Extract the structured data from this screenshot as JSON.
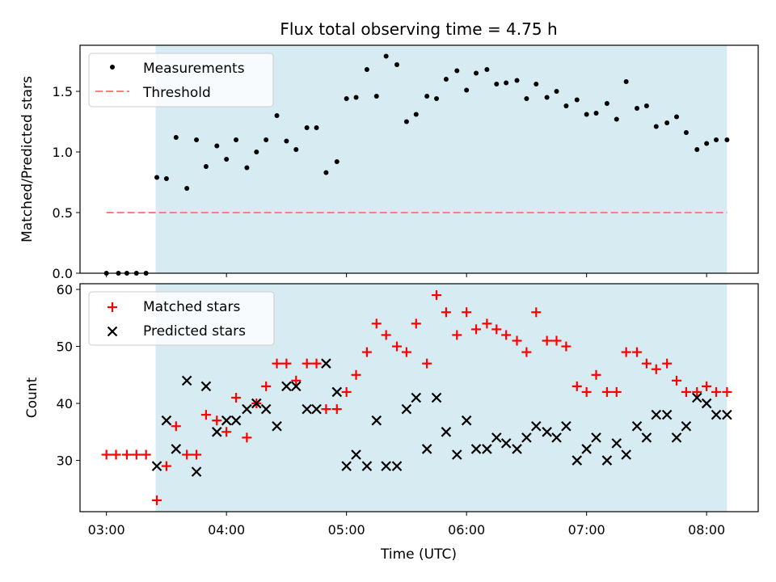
{
  "title": "Flux total observing time = 4.75 h",
  "colors": {
    "shade": "#add8e6",
    "threshold": "#ff7f7f",
    "matched": "#ff0000",
    "predicted": "#000000",
    "measure": "#000000"
  },
  "chart_data": [
    {
      "type": "scatter",
      "ylabel": "Matched/Predicted stars",
      "ylim": [
        0,
        1.88
      ],
      "yticks": [
        "0.0",
        "0.5",
        "1.0",
        "1.5"
      ],
      "xlim": [
        2.78,
        8.43
      ],
      "legend": {
        "placement": "top-left",
        "measurements": "Measurements",
        "threshold": "Threshold"
      },
      "observing_window": [
        3.41,
        8.17
      ],
      "threshold": {
        "value": 0.5,
        "x": [
          3.0,
          8.17
        ]
      },
      "series": [
        {
          "name": "Measurements",
          "x": [
            3.0,
            3.1,
            3.17,
            3.25,
            3.33,
            3.42,
            3.5,
            3.58,
            3.67,
            3.75,
            3.83,
            3.92,
            4.0,
            4.08,
            4.17,
            4.25,
            4.33,
            4.42,
            4.5,
            4.58,
            4.67,
            4.75,
            4.83,
            4.92,
            5.0,
            5.08,
            5.17,
            5.25,
            5.33,
            5.42,
            5.5,
            5.58,
            5.67,
            5.75,
            5.83,
            5.92,
            6.0,
            6.08,
            6.17,
            6.25,
            6.33,
            6.42,
            6.5,
            6.58,
            6.67,
            6.75,
            6.83,
            6.92,
            7.0,
            7.08,
            7.17,
            7.25,
            7.33,
            7.42,
            7.5,
            7.58,
            7.67,
            7.75,
            7.83,
            7.92,
            8.0,
            8.08,
            8.17
          ],
          "y": [
            0.0,
            0.0,
            0.0,
            0.0,
            0.0,
            0.79,
            0.78,
            1.12,
            0.7,
            1.1,
            0.88,
            1.05,
            0.94,
            1.1,
            0.87,
            1.0,
            1.1,
            1.3,
            1.09,
            1.02,
            1.2,
            1.2,
            0.83,
            0.92,
            1.44,
            1.45,
            1.68,
            1.46,
            1.79,
            1.72,
            1.25,
            1.31,
            1.46,
            1.44,
            1.6,
            1.67,
            1.51,
            1.65,
            1.68,
            1.56,
            1.57,
            1.59,
            1.44,
            1.56,
            1.45,
            1.5,
            1.38,
            1.43,
            1.31,
            1.32,
            1.4,
            1.27,
            1.58,
            1.36,
            1.38,
            1.21,
            1.24,
            1.29,
            1.16,
            1.02,
            1.07,
            1.1,
            1.1
          ]
        }
      ]
    },
    {
      "type": "scatter",
      "xlabel": "Time (UTC)",
      "ylabel": "Count",
      "ylim": [
        21,
        61
      ],
      "yticks": [
        "30",
        "40",
        "50",
        "60"
      ],
      "xlim": [
        2.78,
        8.43
      ],
      "xticks": [
        {
          "value": 3,
          "label": "03:00"
        },
        {
          "value": 4,
          "label": "04:00"
        },
        {
          "value": 5,
          "label": "05:00"
        },
        {
          "value": 6,
          "label": "06:00"
        },
        {
          "value": 7,
          "label": "07:00"
        },
        {
          "value": 8,
          "label": "08:00"
        }
      ],
      "legend": {
        "placement": "top-left",
        "matched": "Matched stars",
        "predicted": "Predicted stars"
      },
      "observing_window": [
        3.41,
        8.17
      ],
      "series": [
        {
          "name": "Matched stars",
          "x": [
            3.0,
            3.08,
            3.17,
            3.25,
            3.33,
            3.42,
            3.5,
            3.58,
            3.67,
            3.75,
            3.83,
            3.92,
            4.0,
            4.08,
            4.17,
            4.25,
            4.33,
            4.42,
            4.5,
            4.58,
            4.67,
            4.75,
            4.83,
            4.92,
            5.0,
            5.08,
            5.17,
            5.25,
            5.33,
            5.42,
            5.5,
            5.58,
            5.67,
            5.75,
            5.83,
            5.92,
            6.0,
            6.08,
            6.17,
            6.25,
            6.33,
            6.42,
            6.5,
            6.58,
            6.67,
            6.75,
            6.83,
            6.92,
            7.0,
            7.08,
            7.17,
            7.25,
            7.33,
            7.42,
            7.5,
            7.58,
            7.67,
            7.75,
            7.83,
            7.92,
            8.0,
            8.08,
            8.17
          ],
          "y": [
            31,
            31,
            31,
            31,
            31,
            23,
            29,
            36,
            31,
            31,
            38,
            37,
            35,
            41,
            34,
            40,
            43,
            47,
            47,
            44,
            47,
            47,
            39,
            39,
            42,
            45,
            49,
            54,
            52,
            50,
            49,
            54,
            47,
            59,
            56,
            52,
            56,
            53,
            54,
            53,
            52,
            51,
            49,
            56,
            51,
            51,
            50,
            43,
            42,
            45,
            42,
            42,
            49,
            49,
            47,
            46,
            47,
            44,
            42,
            42,
            43,
            42,
            42
          ]
        },
        {
          "name": "Predicted stars",
          "x": [
            3.42,
            3.5,
            3.58,
            3.67,
            3.75,
            3.83,
            3.92,
            4.0,
            4.08,
            4.17,
            4.25,
            4.33,
            4.42,
            4.5,
            4.58,
            4.67,
            4.75,
            4.83,
            4.92,
            5.0,
            5.08,
            5.17,
            5.25,
            5.33,
            5.42,
            5.5,
            5.58,
            5.67,
            5.75,
            5.83,
            5.92,
            6.0,
            6.08,
            6.17,
            6.25,
            6.33,
            6.42,
            6.5,
            6.58,
            6.67,
            6.75,
            6.83,
            6.92,
            7.0,
            7.08,
            7.17,
            7.25,
            7.33,
            7.42,
            7.5,
            7.58,
            7.67,
            7.75,
            7.83,
            7.92,
            8.0,
            8.08,
            8.17
          ],
          "y": [
            29,
            37,
            32,
            44,
            28,
            43,
            35,
            37,
            37,
            39,
            40,
            39,
            36,
            43,
            43,
            39,
            39,
            47,
            42,
            29,
            31,
            29,
            37,
            29,
            29,
            39,
            41,
            32,
            41,
            35,
            31,
            37,
            32,
            32,
            34,
            33,
            32,
            34,
            36,
            35,
            34,
            36,
            30,
            32,
            34,
            30,
            33,
            31,
            36,
            34,
            38,
            38,
            34,
            36,
            41,
            40,
            38,
            38
          ]
        }
      ]
    }
  ]
}
